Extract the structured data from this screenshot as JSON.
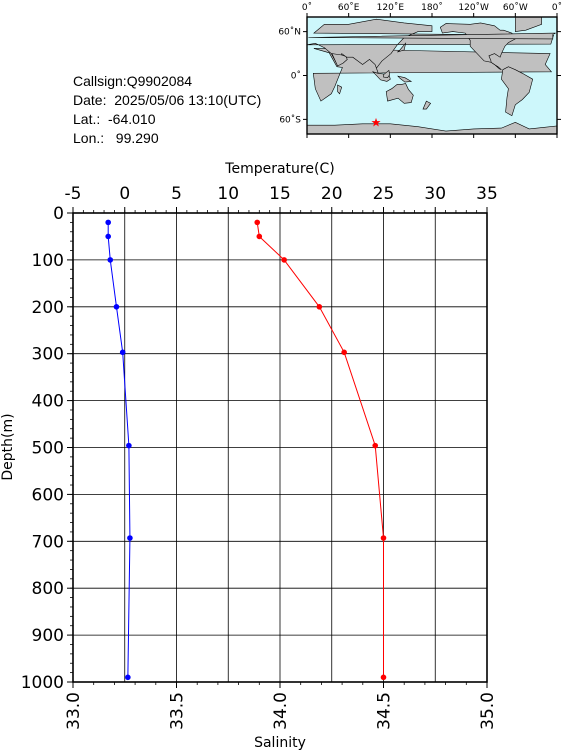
{
  "station": {
    "callsign": "Callsign:Q9902084",
    "date": "Date:  2025/05/06 13:10(UTC)",
    "lat": "Lat.:  -64.010",
    "lon": "Lon.:   99.290"
  },
  "map": {
    "lon_ticks": [
      "0˚",
      "60˚E",
      "120˚E",
      "180˚",
      "120˚W",
      "60˚W",
      "0˚"
    ],
    "lat_ticks": [
      "60˚N",
      "0˚",
      "60˚S"
    ],
    "marker": {
      "lon": 99.29,
      "lat": -64.01,
      "symbol": "★"
    },
    "colors": {
      "ocean": "#cdf7fb",
      "land": "#c0c0c0",
      "marker": "#ff0000"
    }
  },
  "chart_data": {
    "type": "line",
    "ylabel": "Depth(m)",
    "ylim": [
      0,
      1000
    ],
    "yticks": [
      "0",
      "100",
      "200",
      "300",
      "400",
      "500",
      "600",
      "700",
      "800",
      "900",
      "1000"
    ],
    "y_inverted": true,
    "grid": true,
    "top_axis": {
      "label": "Temperature(C)",
      "range": [
        -5,
        35
      ],
      "ticks": [
        "-5",
        "0",
        "5",
        "10",
        "15",
        "20",
        "25",
        "30",
        "35"
      ]
    },
    "bottom_axis": {
      "label": "Salinity",
      "range": [
        33.0,
        35.0
      ],
      "ticks": [
        "33.0",
        "33.5",
        "34.0",
        "34.5",
        "35.0"
      ]
    },
    "series": [
      {
        "axis": "top",
        "color": "#0000ff",
        "points": [
          [
            -1.6,
            20
          ],
          [
            -1.6,
            50
          ],
          [
            -1.4,
            100
          ],
          [
            -0.8,
            200
          ],
          [
            -0.2,
            297
          ],
          [
            0.4,
            496
          ],
          [
            0.5,
            693
          ],
          [
            0.3,
            990
          ]
        ]
      },
      {
        "axis": "bottom",
        "color": "#ff0000",
        "points": [
          [
            33.89,
            20
          ],
          [
            33.9,
            50
          ],
          [
            34.02,
            100
          ],
          [
            34.19,
            200
          ],
          [
            34.31,
            297
          ],
          [
            34.46,
            496
          ],
          [
            34.5,
            693
          ],
          [
            34.5,
            990
          ]
        ]
      }
    ]
  }
}
